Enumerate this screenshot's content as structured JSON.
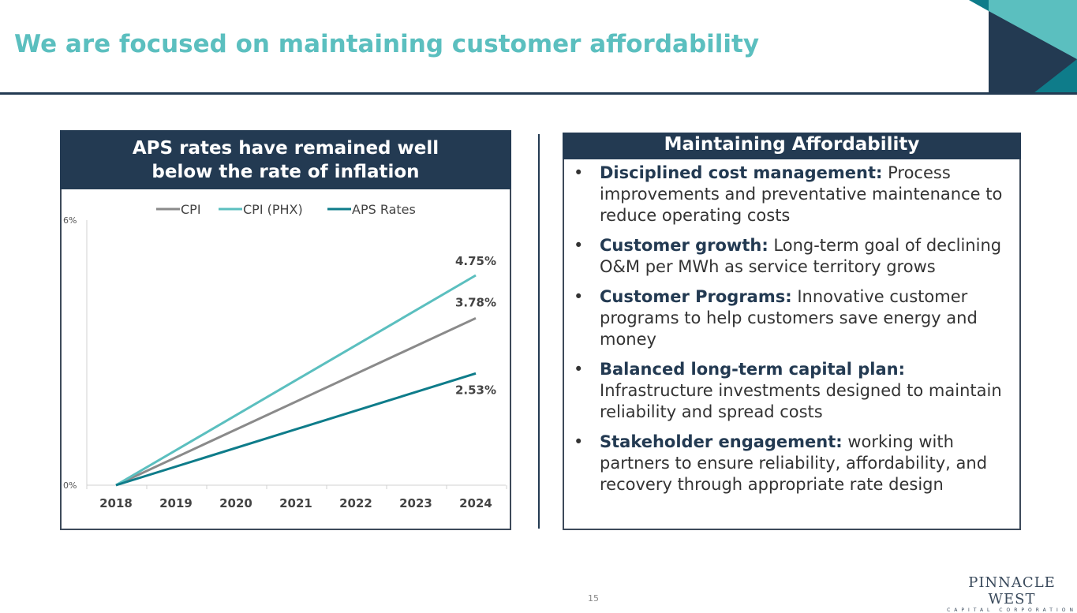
{
  "title": "We are focused on maintaining customer affordability",
  "left_panel": {
    "header": "APS rates have remained well below the rate of inflation"
  },
  "right_panel": {
    "header": "Maintaining Affordability",
    "bullets": [
      {
        "bold": "Disciplined cost management:",
        "text": " Process improvements and preventative maintenance to reduce operating costs"
      },
      {
        "bold": "Customer growth:",
        "text": " Long-term goal of declining O&M per MWh as service territory grows"
      },
      {
        "bold": "Customer Programs:",
        "text": " Innovative customer programs to help customers save energy and money"
      },
      {
        "bold": "Balanced long-term capital plan:",
        "text": " Infrastructure investments designed to maintain reliability and spread costs"
      },
      {
        "bold": "Stakeholder engagement:",
        "text": " working with partners to ensure reliability, affordability, and recovery through appropriate rate design"
      }
    ]
  },
  "page_number": "15",
  "logo": {
    "name": "PINNACLE WEST",
    "sub": "CAPITAL CORPORATION"
  },
  "colors": {
    "navy": "#233a52",
    "teal": "#5bbfbf",
    "dark_teal": "#0e7c8a",
    "gray": "#8a8a8a"
  },
  "chart_data": {
    "type": "line",
    "categories": [
      "2018",
      "2019",
      "2020",
      "2021",
      "2022",
      "2023",
      "2024"
    ],
    "ylim": [
      0,
      6
    ],
    "yticks": [
      "0%",
      "6%"
    ],
    "legend_position": "top",
    "grid": false,
    "series": [
      {
        "name": "CPI",
        "color": "#8a8a8a",
        "start": 0,
        "end": 3.78,
        "end_label": "3.78%"
      },
      {
        "name": "CPI (PHX)",
        "color": "#5bbfbf",
        "start": 0,
        "end": 4.75,
        "end_label": "4.75%"
      },
      {
        "name": "APS Rates",
        "color": "#0e7c8a",
        "start": 0,
        "end": 2.53,
        "end_label": "2.53%"
      }
    ]
  }
}
